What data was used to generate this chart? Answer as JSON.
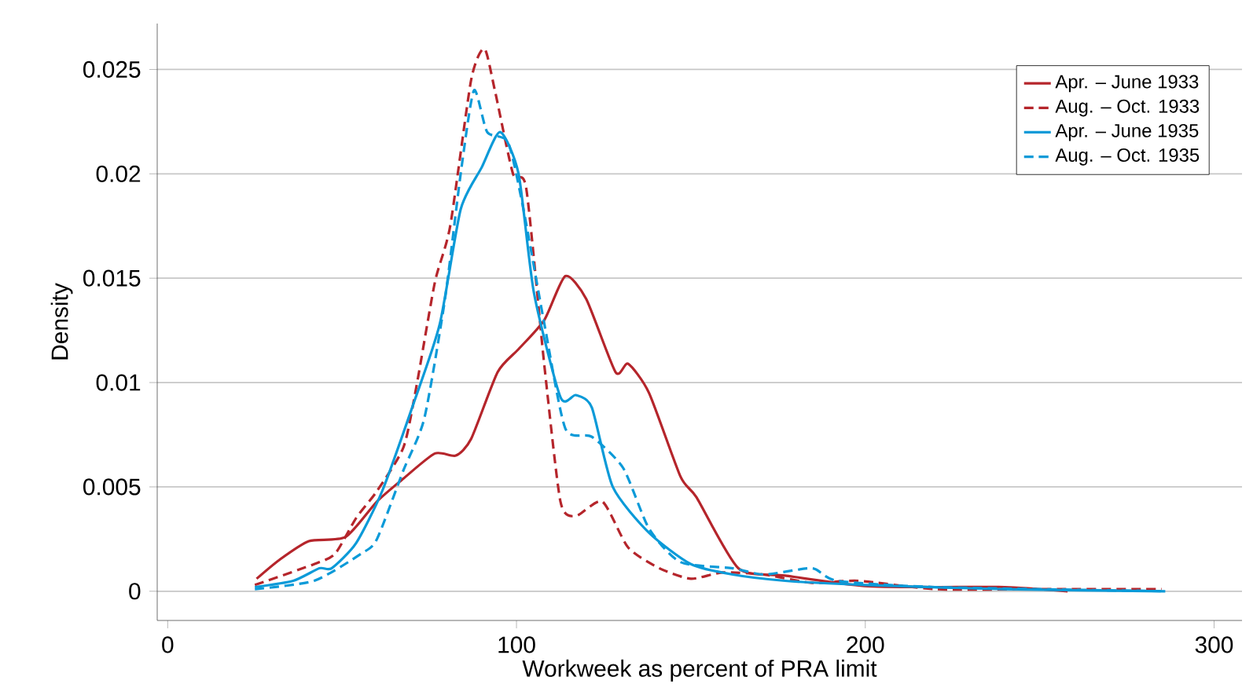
{
  "chart_data": {
    "type": "line",
    "xlabel": "Workweek as percent of PRA limit",
    "ylabel": "Density",
    "xlim": [
      -3,
      308
    ],
    "ylim": [
      -0.0014,
      0.0272
    ],
    "xticks": [
      0,
      100,
      200,
      300
    ],
    "yticks": [
      0,
      0.005,
      0.01,
      0.015,
      0.02,
      0.025
    ],
    "grid": "y",
    "legend": "top right",
    "marker": "none",
    "series": [
      {
        "name": "Apr. – June 1933",
        "color": "#b5252b",
        "line_style": "solid",
        "x": [
          25.5,
          32,
          40.5,
          51,
          60,
          67.6,
          76.6,
          82.6,
          87,
          94.6,
          100.6,
          108,
          114,
          120,
          128.4,
          132,
          138,
          147,
          151.6,
          163.6,
          177,
          199.7,
          220,
          240,
          258
        ],
        "values": [
          0.0006,
          0.0015,
          0.0024,
          0.0026,
          0.0043,
          0.0054,
          0.0066,
          0.0065,
          0.0073,
          0.0105,
          0.0116,
          0.013,
          0.0151,
          0.014,
          0.0105,
          0.0109,
          0.0095,
          0.0055,
          0.0045,
          0.0011,
          0.00075,
          0.00025,
          0.0002,
          0.0002,
          0
        ]
      },
      {
        "name": "Aug. – Oct. 1933",
        "color": "#b5252b",
        "line_style": "dashed",
        "x": [
          25,
          42,
          48,
          54,
          60,
          67.6,
          71.3,
          76.6,
          81,
          87,
          90.8,
          93.8,
          99,
          102.8,
          108,
          112.6,
          117,
          124.6,
          132,
          141,
          150,
          159,
          171,
          184.7,
          198,
          220,
          250,
          285
        ],
        "values": [
          0.0003,
          0.0013,
          0.0018,
          0.0035,
          0.0048,
          0.0069,
          0.0098,
          0.0148,
          0.0175,
          0.0245,
          0.026,
          0.024,
          0.02,
          0.0193,
          0.0108,
          0.0043,
          0.0036,
          0.0043,
          0.0021,
          0.0011,
          0.0006,
          0.0009,
          0.0008,
          0.0004,
          0.0005,
          0.0001,
          0.0001,
          0.0001
        ]
      },
      {
        "name": "Apr. – June 1935",
        "color": "#0b9ad8",
        "line_style": "solid",
        "x": [
          25,
          36,
          43.5,
          47,
          54,
          61.5,
          70.5,
          78,
          84,
          90,
          95.3,
          100.6,
          105,
          112.6,
          117,
          121.6,
          127.6,
          138,
          150,
          162,
          177,
          200,
          240,
          286
        ],
        "values": [
          0.0002,
          0.0005,
          0.0011,
          0.0011,
          0.0023,
          0.0048,
          0.009,
          0.0128,
          0.0183,
          0.0203,
          0.022,
          0.02,
          0.0143,
          0.0093,
          0.0094,
          0.0088,
          0.005,
          0.0028,
          0.0013,
          0.0008,
          0.0005,
          0.0003,
          0.0001,
          0
        ]
      },
      {
        "name": "Aug. – Oct. 1935",
        "color": "#0b9ad8",
        "line_style": "dashed",
        "x": [
          25,
          42,
          55.5,
          60,
          67.6,
          73.6,
          79.5,
          84,
          87.8,
          91.6,
          97.6,
          102,
          108,
          114,
          121.6,
          130.6,
          138,
          147,
          162,
          171,
          184.7,
          192,
          220,
          286
        ],
        "values": [
          0.0001,
          0.0005,
          0.0018,
          0.0025,
          0.0058,
          0.0083,
          0.014,
          0.02,
          0.024,
          0.022,
          0.0215,
          0.0183,
          0.0128,
          0.0078,
          0.0074,
          0.0059,
          0.003,
          0.0014,
          0.0011,
          0.0008,
          0.0011,
          0.0005,
          0.0002,
          0
        ]
      }
    ]
  }
}
